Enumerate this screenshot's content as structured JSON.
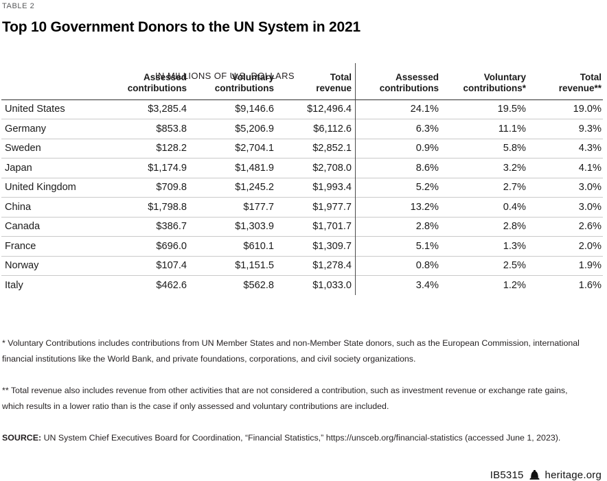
{
  "page": {
    "table_label": "TABLE 2",
    "title": "Top 10 Government Donors to the UN System in 2021"
  },
  "chart_data": {
    "type": "table",
    "title": "Top 10 Government Donors to the UN System in 2021",
    "left_group_label": "IN MILLIONS OF U.S. DOLLARS",
    "columns": [
      "",
      "Assessed\ncontributions",
      "Voluntary\ncontributions",
      "Total\nrevenue",
      "Assessed\ncontributions",
      "Voluntary\ncontributions*",
      "Total\nrevenue**"
    ],
    "cell_keys": [
      "country",
      "assessed_usd",
      "voluntary_usd",
      "total_usd",
      "assessed_pct",
      "voluntary_pct",
      "total_pct"
    ],
    "rows": [
      {
        "country": "United States",
        "assessed_usd": "$3,285.4",
        "voluntary_usd": "$9,146.6",
        "total_usd": "$12,496.4",
        "assessed_pct": "24.1%",
        "voluntary_pct": "19.5%",
        "total_pct": "19.0%"
      },
      {
        "country": "Germany",
        "assessed_usd": "$853.8",
        "voluntary_usd": "$5,206.9",
        "total_usd": "$6,112.6",
        "assessed_pct": "6.3%",
        "voluntary_pct": "11.1%",
        "total_pct": "9.3%"
      },
      {
        "country": "Sweden",
        "assessed_usd": "$128.2",
        "voluntary_usd": "$2,704.1",
        "total_usd": "$2,852.1",
        "assessed_pct": "0.9%",
        "voluntary_pct": "5.8%",
        "total_pct": "4.3%"
      },
      {
        "country": "Japan",
        "assessed_usd": "$1,174.9",
        "voluntary_usd": "$1,481.9",
        "total_usd": "$2,708.0",
        "assessed_pct": "8.6%",
        "voluntary_pct": "3.2%",
        "total_pct": "4.1%"
      },
      {
        "country": "United Kingdom",
        "assessed_usd": "$709.8",
        "voluntary_usd": "$1,245.2",
        "total_usd": "$1,993.4",
        "assessed_pct": "5.2%",
        "voluntary_pct": "2.7%",
        "total_pct": "3.0%"
      },
      {
        "country": "China",
        "assessed_usd": "$1,798.8",
        "voluntary_usd": "$177.7",
        "total_usd": "$1,977.7",
        "assessed_pct": "13.2%",
        "voluntary_pct": "0.4%",
        "total_pct": "3.0%"
      },
      {
        "country": "Canada",
        "assessed_usd": "$386.7",
        "voluntary_usd": "$1,303.9",
        "total_usd": "$1,701.7",
        "assessed_pct": "2.8%",
        "voluntary_pct": "2.8%",
        "total_pct": "2.6%"
      },
      {
        "country": "France",
        "assessed_usd": "$696.0",
        "voluntary_usd": "$610.1",
        "total_usd": "$1,309.7",
        "assessed_pct": "5.1%",
        "voluntary_pct": "1.3%",
        "total_pct": "2.0%"
      },
      {
        "country": "Norway",
        "assessed_usd": "$107.4",
        "voluntary_usd": "$1,151.5",
        "total_usd": "$1,278.4",
        "assessed_pct": "0.8%",
        "voluntary_pct": "2.5%",
        "total_pct": "1.9%"
      },
      {
        "country": "Italy",
        "assessed_usd": "$462.6",
        "voluntary_usd": "$562.8",
        "total_usd": "$1,033.0",
        "assessed_pct": "3.4%",
        "voluntary_pct": "1.2%",
        "total_pct": "1.6%"
      }
    ]
  },
  "footnotes": {
    "voluntary": "* Voluntary Contributions includes contributions from UN Member States and non-Member State donors, such as the European Commission, international\nfinancial institutions like the World Bank, and private foundations, corporations, and civil society organizations.",
    "total_revenue": "** Total revenue also includes revenue from other activities that are not considered a contribution, such as investment revenue or exchange rate gains,\nwhich results in a lower ratio than is the case if only assessed and voluntary contributions are included.",
    "source_label": "SOURCE:",
    "source_text": " UN System Chief Executives Board for Coordination, “Financial Statistics,” https://unsceb.org/financial-statistics (accessed June 1, 2023)."
  },
  "footer": {
    "doc_id": "IB5315",
    "site": "heritage.org",
    "icon": "liberty-bell-icon",
    "icon_color": "#111111"
  }
}
